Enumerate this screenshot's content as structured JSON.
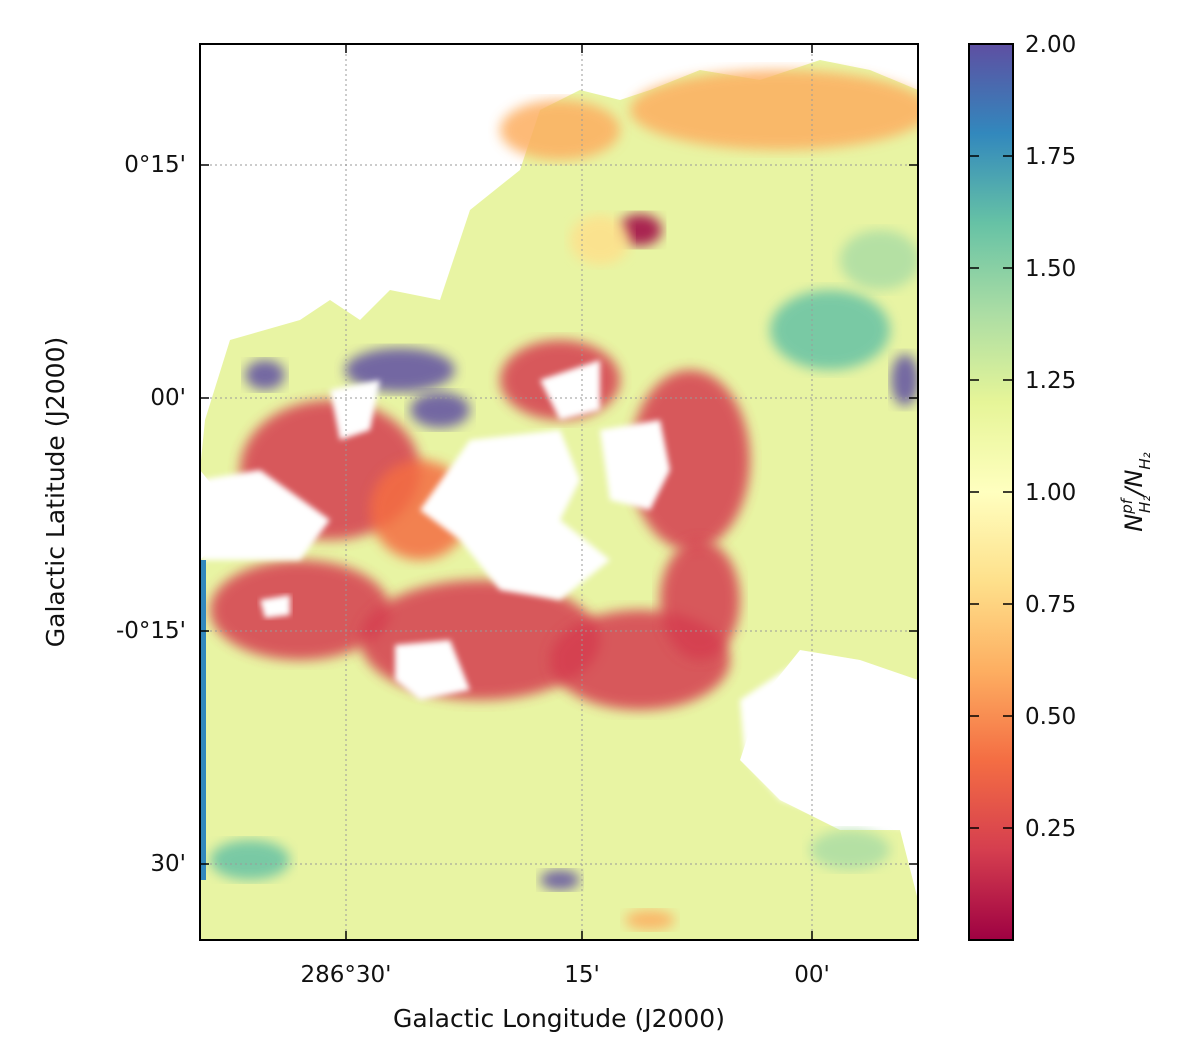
{
  "chart_data": {
    "type": "heatmap",
    "title": "",
    "xlabel": "Galactic Longitude (J2000)",
    "ylabel": "Galactic Latitude (J2000)",
    "x_ticks": [
      "286°30'",
      "15'",
      "00'"
    ],
    "y_ticks": [
      "0°15'",
      "00'",
      "-0°15'",
      "30'"
    ],
    "grid": true,
    "colormap": "Spectral",
    "colorbar": {
      "label_base": "N",
      "label_sup": "pf",
      "label_sub": "H₂",
      "label_sep": "/",
      "label_base2": "N",
      "label_sub2": "H₂",
      "ticks": [
        "0.25",
        "0.50",
        "0.75",
        "1.00",
        "1.25",
        "1.50",
        "1.75",
        "2.00"
      ],
      "tick_values": [
        0.25,
        0.5,
        0.75,
        1.0,
        1.25,
        1.5,
        1.75,
        2.0
      ],
      "range": [
        0.0,
        2.0
      ]
    },
    "description_values": {
      "background_ratio": 1.1,
      "ring_ratio_min": 0.05,
      "peak_ratio_max": 2.0
    }
  },
  "colors": {
    "spectral": [
      "#9e0142",
      "#d53e4f",
      "#f46d43",
      "#fdae61",
      "#fee08b",
      "#ffffbf",
      "#e6f598",
      "#abdda4",
      "#66c2a5",
      "#3288bd",
      "#5e4fa2"
    ]
  }
}
